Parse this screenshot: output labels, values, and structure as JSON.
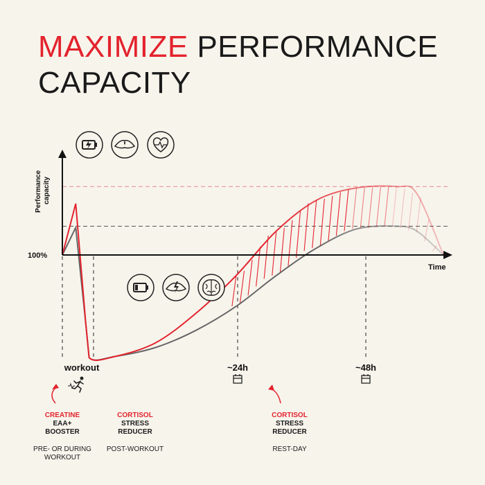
{
  "headline": {
    "accent": "MAXIMIZE",
    "rest": "PERFORMANCE",
    "line2": "CAPACITY"
  },
  "chart_data": {
    "type": "line",
    "title": "MAXIMIZE PERFORMANCE CAPACITY",
    "ylabel": "Performance capacity",
    "xlabel": "Time",
    "baseline_label": "100%",
    "x_ticks": [
      {
        "label": "workout",
        "hours": 2
      },
      {
        "label": "~24h",
        "hours": 24
      },
      {
        "label": "~48h",
        "hours": 48
      }
    ],
    "xlim": [
      -2,
      55
    ],
    "ylim": [
      -160,
      140
    ],
    "series": [
      {
        "color": "#e3232d",
        "points": [
          [
            -2,
            0
          ],
          [
            0,
            75
          ],
          [
            1.5,
            -100
          ],
          [
            2,
            -150
          ],
          [
            6,
            -148
          ],
          [
            12,
            -128
          ],
          [
            18,
            -85
          ],
          [
            24,
            -30
          ],
          [
            30,
            35
          ],
          [
            36,
            80
          ],
          [
            42,
            98
          ],
          [
            48,
            100
          ],
          [
            51,
            90
          ],
          [
            55,
            0
          ]
        ]
      },
      {
        "color": "#666666",
        "points": [
          [
            -2,
            0
          ],
          [
            0,
            40
          ],
          [
            1.5,
            -100
          ],
          [
            2,
            -150
          ],
          [
            6,
            -148
          ],
          [
            12,
            -135
          ],
          [
            18,
            -110
          ],
          [
            24,
            -75
          ],
          [
            30,
            -30
          ],
          [
            36,
            10
          ],
          [
            42,
            38
          ],
          [
            48,
            42
          ],
          [
            51,
            35
          ],
          [
            55,
            0
          ]
        ]
      }
    ],
    "reference_lines": [
      {
        "value": 100,
        "color": "#e3232d",
        "style": "dashed"
      },
      {
        "value": 42,
        "color": "#444444",
        "style": "dashed"
      }
    ],
    "shaded_region": {
      "between": "series",
      "from": 24,
      "to": 55,
      "style": "hatched"
    }
  },
  "icons_top": [
    "battery-charging-icon",
    "muscle-icon",
    "heart-rate-icon"
  ],
  "icons_mid": [
    "battery-low-icon",
    "muscle-strain-icon",
    "brain-icon"
  ],
  "day_icons": [
    "calendar-icon",
    "calendar-icon"
  ],
  "workout_icon": "running-person-icon",
  "supplements": [
    {
      "red": "CREATINE",
      "black1": "EAA+",
      "black2": "BOOSTER",
      "timing": "PRE- OR DURING WORKOUT"
    },
    {
      "red": "CORTISOL",
      "black1": "STRESS",
      "black2": "REDUCER",
      "timing": "POST-WORKOUT"
    },
    {
      "red": "CORTISOL",
      "black1": "STRESS",
      "black2": "REDUCER",
      "timing": "REST-DAY"
    }
  ]
}
